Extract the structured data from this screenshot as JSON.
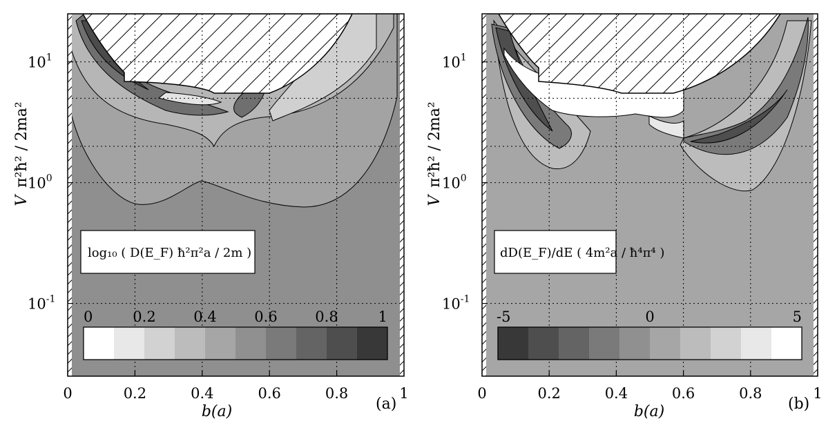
{
  "chart_data": [
    {
      "type": "heatmap",
      "panel_label": "(a)",
      "xlabel": "b(a)",
      "ylabel": "V",
      "ylabel_units": "π²ħ² / 2ma²",
      "y_scale": "log",
      "xlim": [
        0,
        1
      ],
      "ylim": [
        0.025,
        25
      ],
      "xticks": [
        "0",
        "0.2",
        "0.4",
        "0.6",
        "0.8",
        "1"
      ],
      "yticks": [
        {
          "base": "10",
          "exp": "1",
          "value": 10
        },
        {
          "base": "10",
          "exp": "0",
          "value": 1
        },
        {
          "base": "10",
          "exp": "-1",
          "value": 0.1
        }
      ],
      "grid": true,
      "legend_text": "log₁₀ ( D(E_F) ħ²π²a / 2m )",
      "colorbar": {
        "min_label": "0",
        "max_label": "1",
        "labels": [
          "0",
          "0.2",
          "0.4",
          "0.6",
          "0.8",
          "1"
        ],
        "levels": 10,
        "shades": [
          "#ffffff",
          "#e8e8e8",
          "#d2d2d2",
          "#bcbcbc",
          "#a6a6a6",
          "#909090",
          "#7a7a7a",
          "#646464",
          "#4e4e4e",
          "#383838"
        ]
      },
      "contour_regions": [
        {
          "level": 0.5,
          "color": "#a3a3a3",
          "description": "broad U-shaped region above lower boundary"
        },
        {
          "level": 0.4,
          "color": "#b5b5b5"
        },
        {
          "level": 0.3,
          "color": "#c8c8c8"
        },
        {
          "level": 0.7,
          "color": "#6e6e6e",
          "description": "dark band along left arc near b≈0.1–0.2"
        },
        {
          "level": 0.8,
          "color": "#4a4a4a"
        }
      ],
      "excluded_region": "hatched dome at top, b≈0.05–0.95, V≳5"
    },
    {
      "type": "heatmap",
      "panel_label": "(b)",
      "xlabel": "b(a)",
      "ylabel": "V",
      "ylabel_units": "π²ħ² / 2ma²",
      "y_scale": "log",
      "xlim": [
        0,
        1
      ],
      "ylim": [
        0.025,
        25
      ],
      "xticks": [
        "0",
        "0.2",
        "0.4",
        "0.6",
        "0.8",
        "1"
      ],
      "yticks": [
        {
          "base": "10",
          "exp": "1",
          "value": 10
        },
        {
          "base": "10",
          "exp": "0",
          "value": 1
        },
        {
          "base": "10",
          "exp": "-1",
          "value": 0.1
        }
      ],
      "grid": true,
      "legend_text": "dD(E_F)/dE ( 4m²a / ħ⁴π⁴ )",
      "colorbar": {
        "min_label": "-5",
        "mid_label": "0",
        "max_label": "5",
        "levels": 10,
        "shades": [
          "#383838",
          "#4e4e4e",
          "#646464",
          "#7a7a7a",
          "#909090",
          "#a6a6a6",
          "#bcbcbc",
          "#d2d2d2",
          "#e8e8e8",
          "#ffffff"
        ]
      },
      "contour_regions": [
        {
          "level": -1,
          "color": "#7a7a7a",
          "description": "dark wing on left under dome"
        },
        {
          "level": -3,
          "color": "#4e4e4e"
        },
        {
          "level": 1,
          "color": "#bcbcbc"
        },
        {
          "level": 5,
          "color": "#ffffff",
          "description": "white pockets just under dome"
        }
      ],
      "excluded_region": "hatched dome at top, b≈0.05–0.95, V≳5"
    }
  ]
}
